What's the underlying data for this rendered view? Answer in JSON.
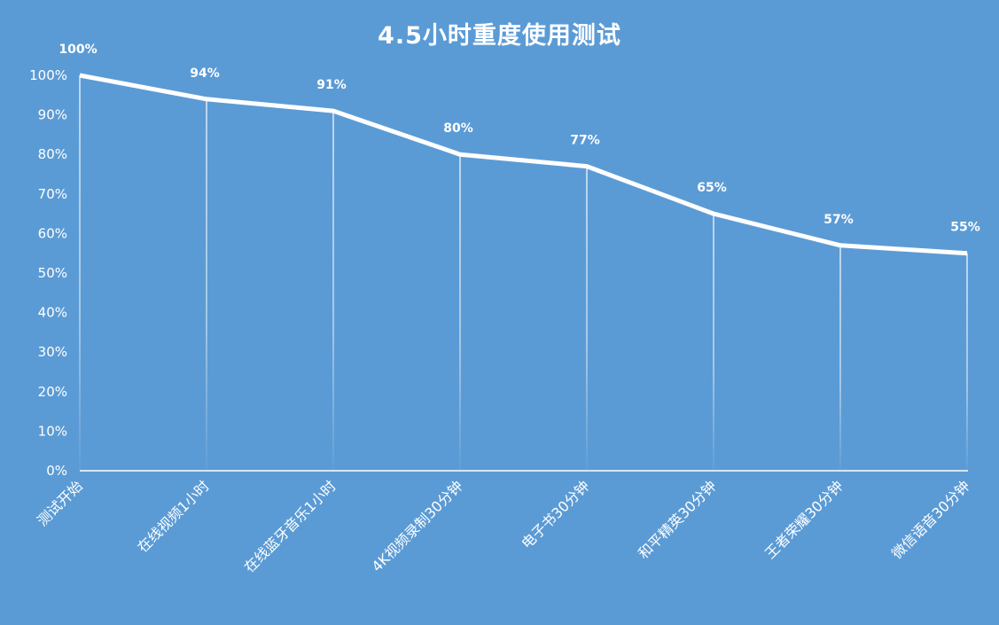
{
  "chart_data": {
    "type": "line",
    "title": "4.5小时重度使用测试",
    "xlabel": "",
    "ylabel": "",
    "categories": [
      "测试开始",
      "在线视频1小时",
      "在线蓝牙音乐1小时",
      "4K视频录制30分钟",
      "电子书30分钟",
      "和平精英30分钟",
      "王者荣耀30分钟",
      "微信语音30分钟"
    ],
    "series": [
      {
        "values": [
          100,
          94,
          91,
          80,
          77,
          65,
          57,
          55
        ]
      }
    ],
    "data_labels": [
      "100%",
      "94%",
      "91%",
      "80%",
      "77%",
      "65%",
      "57%",
      "55%"
    ],
    "ylim": [
      0,
      100
    ],
    "yticks": [
      "0%",
      "10%",
      "20%",
      "30%",
      "40%",
      "50%",
      "60%",
      "70%",
      "80%",
      "90%",
      "100%"
    ],
    "grid": false,
    "drop_lines": true,
    "colors": {
      "background": "#5b9bd5",
      "line": "#ffffff",
      "text": "#ffffff"
    }
  }
}
